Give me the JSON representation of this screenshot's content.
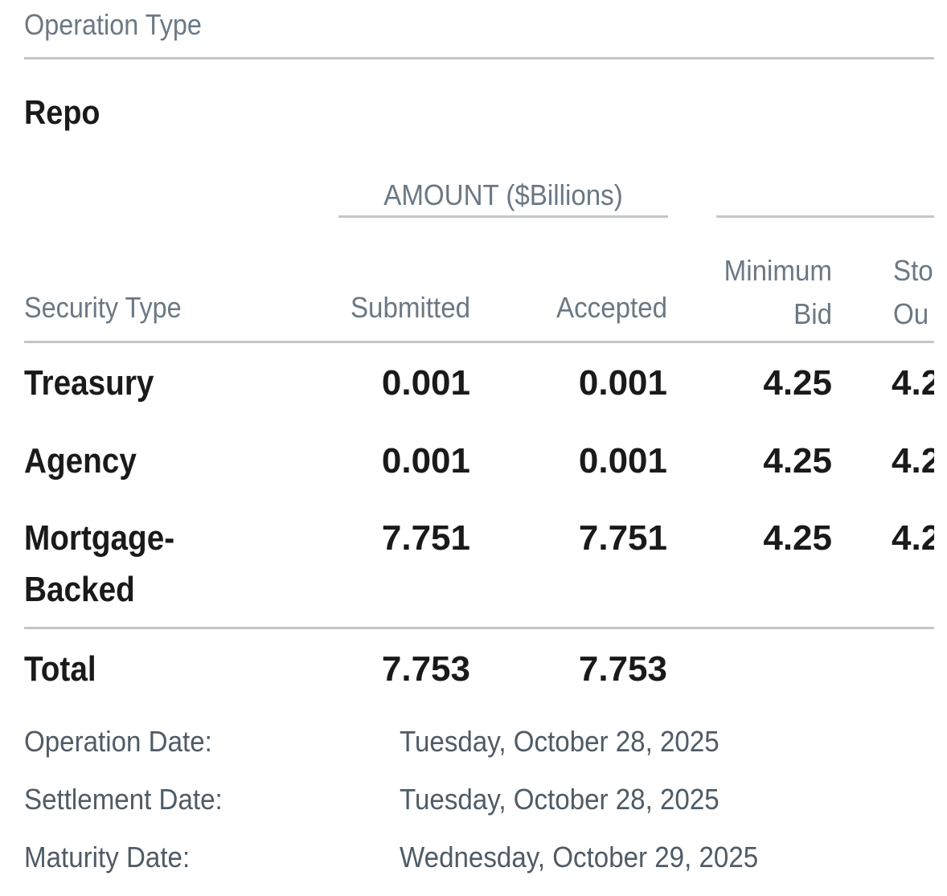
{
  "section": {
    "label": "Operation Type",
    "title": "Repo"
  },
  "table": {
    "group_header": "AMOUNT ($Billions)",
    "headers": {
      "security_type": "Security Type",
      "submitted": "Submitted",
      "accepted": "Accepted",
      "minimum_bid_line1": "Minimum",
      "minimum_bid_line2": "Bid",
      "stop_out_line1": "Sto",
      "stop_out_line2": "Ou"
    },
    "rows": [
      {
        "security_type": "Treasury",
        "submitted": "0.001",
        "accepted": "0.001",
        "minimum_bid": "4.25",
        "stop_out": "4.2"
      },
      {
        "security_type": "Agency",
        "submitted": "0.001",
        "accepted": "0.001",
        "minimum_bid": "4.25",
        "stop_out": "4.2"
      },
      {
        "security_type": "Mortgage-Backed",
        "submitted": "7.751",
        "accepted": "7.751",
        "minimum_bid": "4.25",
        "stop_out": "4.2"
      }
    ],
    "total": {
      "label": "Total",
      "submitted": "7.753",
      "accepted": "7.753"
    }
  },
  "dates": {
    "operation_label": "Operation Date:",
    "operation_value": "Tuesday, October 28, 2025",
    "settlement_label": "Settlement Date:",
    "settlement_value": "Tuesday, October 28, 2025",
    "maturity_label": "Maturity Date:",
    "maturity_value": "Wednesday, October 29, 2025"
  }
}
